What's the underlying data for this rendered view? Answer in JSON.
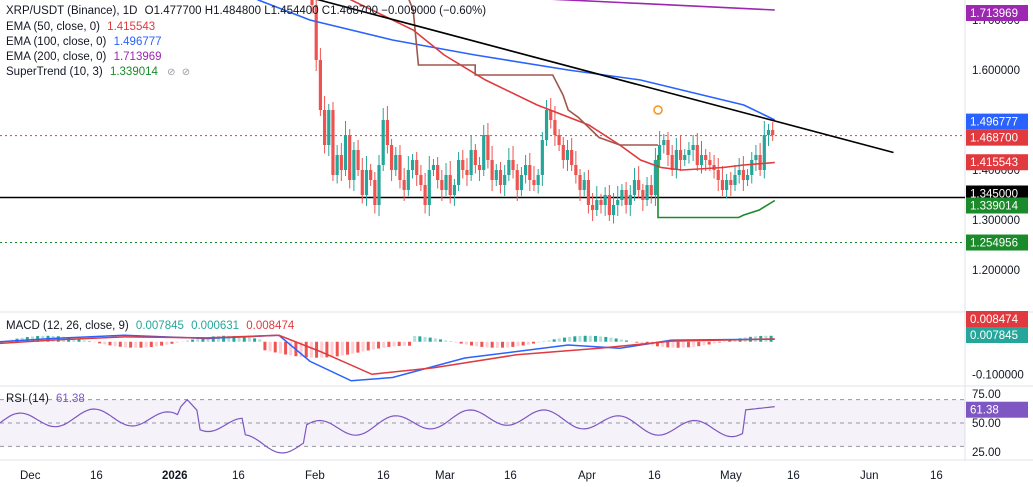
{
  "header": {
    "symbol": "XRP/USDT (Binance), 1D",
    "ohlc": "O1.477700 H1.484800 L1.454400 C1.468700 −0.009000 (−0.60%)"
  },
  "indicators": {
    "ema50": {
      "label": "EMA (50, close, 0)",
      "value": "1.415543",
      "color": "#e03a3e"
    },
    "ema100": {
      "label": "EMA (100, close, 0)",
      "value": "1.496777",
      "color": "#2962ff"
    },
    "ema200": {
      "label": "EMA (200, close, 0)",
      "value": "1.713969",
      "color": "#9c27b0"
    },
    "supertrend": {
      "label": "SuperTrend (10, 3)",
      "value": "1.339014",
      "color": "#1b8a2a"
    },
    "macd": {
      "label": "MACD (12, 26, close, 9)",
      "v1": "0.007845",
      "v2": "0.000631",
      "v3": "0.008474"
    },
    "rsi": {
      "label": "RSI (14)",
      "value": "61.38",
      "color": "#7e57c2"
    }
  },
  "chart_data": {
    "type": "candlestick",
    "symbol": "XRP/USDT",
    "timeframe": "1D",
    "x_labels": [
      "Dec",
      "16",
      "2026",
      "16",
      "Feb",
      "16",
      "Mar",
      "16",
      "Apr",
      "16",
      "May",
      "16",
      "Jun",
      "16"
    ],
    "price_axis": {
      "ticks": [
        "1.700000",
        "1.600000",
        "1.500000",
        "1.400000",
        "1.300000",
        "1.200000"
      ],
      "range": [
        1.12,
        1.74
      ]
    },
    "price_labels": [
      {
        "value": "1.713969",
        "color": "#9c27b0"
      },
      {
        "value": "1.496777",
        "color": "#2962ff"
      },
      {
        "value": "1.468700",
        "color": "#e03a3e"
      },
      {
        "value": "1.415543",
        "color": "#e03a3e"
      },
      {
        "value": "1.345000",
        "color": "#000000"
      },
      {
        "value": "1.339014",
        "color": "#1b8a2a"
      },
      {
        "value": "1.254956",
        "color": "#1b8a2a"
      }
    ],
    "horizontal_levels": [
      {
        "price": 1.345,
        "style": "solid",
        "color": "#000000"
      },
      {
        "price": 1.254956,
        "style": "dotted",
        "color": "#1b8a2a"
      },
      {
        "price": 1.4687,
        "style": "dotted",
        "color": "#e03a3e"
      }
    ],
    "series": [
      {
        "name": "EMA (200)",
        "color": "#9c27b0",
        "points": [
          [
            0.0,
            1.8
          ],
          [
            0.3,
            1.765
          ],
          [
            0.45,
            1.75
          ],
          [
            0.6,
            1.735
          ],
          [
            0.75,
            1.72
          ]
        ]
      },
      {
        "name": "EMA (100)",
        "color": "#2962ff",
        "points": [
          [
            0.22,
            1.78
          ],
          [
            0.25,
            1.74
          ],
          [
            0.3,
            1.7
          ],
          [
            0.38,
            1.66
          ],
          [
            0.46,
            1.63
          ],
          [
            0.55,
            1.6
          ],
          [
            0.62,
            1.58
          ],
          [
            0.68,
            1.55
          ],
          [
            0.72,
            1.53
          ],
          [
            0.75,
            1.5
          ]
        ]
      },
      {
        "name": "EMA (50)",
        "color": "#e03a3e",
        "points": [
          [
            0.285,
            1.78
          ],
          [
            0.33,
            1.75
          ],
          [
            0.4,
            1.68
          ],
          [
            0.43,
            1.63
          ],
          [
            0.47,
            1.58
          ],
          [
            0.52,
            1.53
          ],
          [
            0.57,
            1.49
          ],
          [
            0.6,
            1.45
          ],
          [
            0.62,
            1.42
          ],
          [
            0.64,
            1.405
          ],
          [
            0.66,
            1.4
          ],
          [
            0.7,
            1.405
          ],
          [
            0.72,
            1.41
          ],
          [
            0.75,
            1.415
          ]
        ]
      },
      {
        "name": "SuperTrend (10, 3)",
        "color": "#1b8a2a",
        "points": [
          [
            0.637,
            1.43
          ],
          [
            0.637,
            1.305
          ],
          [
            0.715,
            1.305
          ],
          [
            0.72,
            1.31
          ],
          [
            0.735,
            1.32
          ],
          [
            0.75,
            1.339
          ]
        ]
      },
      {
        "name": "SuperTrend bearish",
        "color": "#a0574d",
        "points": [
          [
            0.36,
            1.77
          ],
          [
            0.39,
            1.77
          ],
          [
            0.4,
            1.72
          ],
          [
            0.405,
            1.61
          ],
          [
            0.46,
            1.61
          ],
          [
            0.46,
            1.59
          ],
          [
            0.535,
            1.59
          ],
          [
            0.545,
            1.55
          ],
          [
            0.55,
            1.52
          ],
          [
            0.56,
            1.505
          ],
          [
            0.58,
            1.465
          ],
          [
            0.6,
            1.45
          ],
          [
            0.637,
            1.45
          ]
        ]
      },
      {
        "name": "Trendline",
        "color": "#000000",
        "points": [
          [
            0.3,
            1.745
          ],
          [
            0.865,
            1.435
          ]
        ]
      }
    ],
    "macd": {
      "axis_ticks": [
        "-0.100000"
      ],
      "labels": [
        {
          "value": "0.008474",
          "color": "#e03a3e"
        },
        {
          "value": "0.007845",
          "color": "#26a69a"
        }
      ]
    },
    "rsi": {
      "axis_ticks": [
        "75.00",
        "50.00",
        "25.00"
      ],
      "bands": [
        30,
        70
      ],
      "label": {
        "value": "61.38",
        "color": "#7e57c2"
      }
    }
  }
}
